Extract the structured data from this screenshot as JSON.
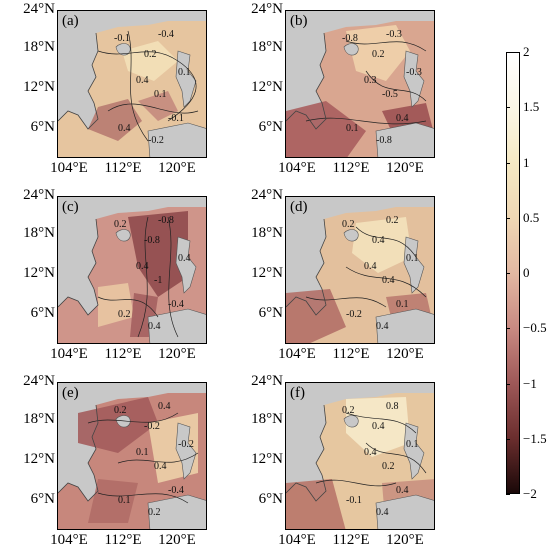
{
  "panels": [
    {
      "label": "(a)",
      "lat_ticks": [
        "24°N",
        "18°N",
        "12°N",
        "6°N"
      ],
      "lon_ticks": [
        "104°E",
        "112°E",
        "120°E"
      ],
      "contour_labels": [
        "-0.1",
        "0.2",
        "-0.4",
        "0.4",
        "0.1",
        "-0.1",
        "0.4",
        "0.1",
        "-0.2"
      ]
    },
    {
      "label": "(b)",
      "lat_ticks": [
        "24°N",
        "18°N",
        "12°N",
        "6°N"
      ],
      "lon_ticks": [
        "104°E",
        "112°E",
        "120°E"
      ],
      "contour_labels": [
        "-0.8",
        "0.2",
        "-0.3",
        "0.3",
        "-0.5",
        "0.4",
        "0.1",
        "-0.3",
        "-0.8"
      ]
    },
    {
      "label": "(c)",
      "lat_ticks": [
        "24°N",
        "18°N",
        "12°N",
        "6°N"
      ],
      "lon_ticks": [
        "104°E",
        "112°E",
        "120°E"
      ],
      "contour_labels": [
        "0.2",
        "-0.8",
        "-0.8",
        "0.4",
        "-1",
        "-0.4",
        "0.2",
        "0.4",
        "0.4"
      ]
    },
    {
      "label": "(d)",
      "lat_ticks": [
        "24°N",
        "18°N",
        "12°N",
        "6°N"
      ],
      "lon_ticks": [
        "104°E",
        "112°E",
        "120°E"
      ],
      "contour_labels": [
        "0.2",
        "0.4",
        "0.2",
        "0.4",
        "0.4",
        "0.1",
        "-0.2",
        "0.1",
        "0.4"
      ]
    },
    {
      "label": "(e)",
      "lat_ticks": [
        "24°N",
        "18°N",
        "12°N",
        "6°N"
      ],
      "lon_ticks": [
        "104°E",
        "112°E",
        "120°E"
      ],
      "contour_labels": [
        "0.2",
        "-0.2",
        "0.4",
        "0.1",
        "0.4",
        "-0.4",
        "0.1",
        "-0.2",
        "0.2"
      ]
    },
    {
      "label": "(f)",
      "lat_ticks": [
        "24°N",
        "18°N",
        "12°N",
        "6°N"
      ],
      "lon_ticks": [
        "104°E",
        "112°E",
        "120°E"
      ],
      "contour_labels": [
        "0.2",
        "0.4",
        "0.8",
        "0.4",
        "0.2",
        "0.4",
        "-0.1",
        "0.1",
        "0.4"
      ]
    }
  ],
  "colorbar": {
    "ticks": [
      "2",
      "1.5",
      "1",
      "0.5",
      "0",
      "−0.5",
      "−1",
      "−1.5",
      "−2"
    ],
    "range": [
      -2,
      2
    ],
    "colors": [
      "#1a0808",
      "#6b2e2e",
      "#9e5858",
      "#c98a82",
      "#e2b8a3",
      "#efd7b4",
      "#f5e9c4",
      "#fbf6e6",
      "#ffffff"
    ]
  },
  "colors": {
    "land": "#c8c8c8",
    "warm": "#eed2a6",
    "neutral": "#dca791",
    "cool": "#b8706a",
    "deep": "#9a4e4f"
  }
}
